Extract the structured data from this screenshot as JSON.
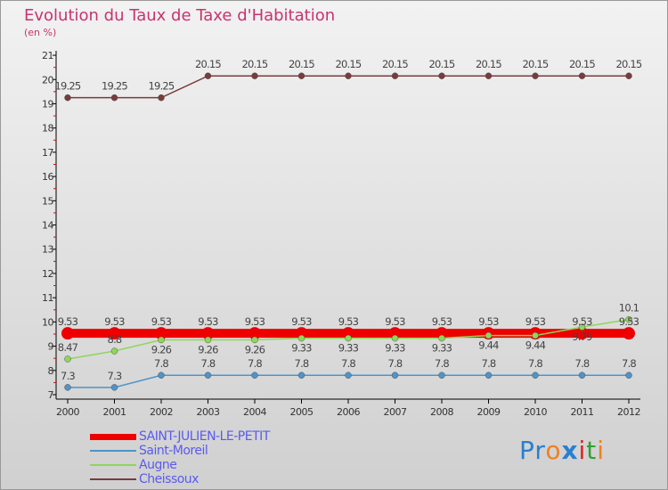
{
  "chart_data": {
    "type": "line",
    "title": "Evolution du Taux de Taxe d'Habitation",
    "subtitle": "(en %)",
    "xlabel": "",
    "ylabel": "",
    "ylim": [
      7,
      21
    ],
    "yticks": [
      "7",
      "8",
      "9",
      "10",
      "11",
      "12",
      "13",
      "14",
      "15",
      "16",
      "17",
      "18",
      "19",
      "20",
      "21"
    ],
    "x": [
      "2000",
      "2001",
      "2002",
      "2003",
      "2004",
      "2005",
      "2006",
      "2007",
      "2008",
      "2009",
      "2010",
      "2011",
      "2012"
    ],
    "legend_position": "bottom-left",
    "series": [
      {
        "name": "SAINT-JULIEN-LE-PETIT",
        "color": "#ee0000",
        "values": [
          9.53,
          9.53,
          9.53,
          9.53,
          9.53,
          9.53,
          9.53,
          9.53,
          9.53,
          9.53,
          9.53,
          9.53,
          9.53
        ],
        "labels": [
          "9.53",
          "9.53",
          "9.53",
          "9.53",
          "9.53",
          "9.53",
          "9.53",
          "9.53",
          "9.53",
          "9.53",
          "9.53",
          "9.53",
          "9.53"
        ]
      },
      {
        "name": "Saint-Moreil",
        "color": "#4f93c8",
        "values": [
          7.3,
          7.3,
          7.8,
          7.8,
          7.8,
          7.8,
          7.8,
          7.8,
          7.8,
          7.8,
          7.8,
          7.8,
          7.8
        ],
        "labels": [
          "7.3",
          "7.3",
          "7.8",
          "7.8",
          "7.8",
          "7.8",
          "7.8",
          "7.8",
          "7.8",
          "7.8",
          "7.8",
          "7.8",
          "7.8"
        ]
      },
      {
        "name": "Augne",
        "color": "#8fd65a",
        "values": [
          8.47,
          8.8,
          9.26,
          9.26,
          9.26,
          9.33,
          9.33,
          9.33,
          9.33,
          9.44,
          9.44,
          9.79,
          10.1
        ],
        "labels": [
          "8.47",
          "8.8",
          "9.26",
          "9.26",
          "9.26",
          "9.33",
          "9.33",
          "9.33",
          "9.33",
          "9.44",
          "9.44",
          "9.79",
          "10.1"
        ]
      },
      {
        "name": "Cheissoux",
        "color": "#7a3b3b",
        "values": [
          19.25,
          19.25,
          19.25,
          20.15,
          20.15,
          20.15,
          20.15,
          20.15,
          20.15,
          20.15,
          20.15,
          20.15,
          20.15
        ],
        "labels": [
          "19.25",
          "19.25",
          "19.25",
          "20.15",
          "20.15",
          "20.15",
          "20.15",
          "20.15",
          "20.15",
          "20.15",
          "20.15",
          "20.15",
          "20.15"
        ]
      }
    ]
  },
  "logo": {
    "text": "Proxiti",
    "letters": [
      "P",
      "r",
      "o",
      "x",
      "i",
      "t",
      "i"
    ],
    "colors": [
      "#2a7fd0",
      "#2a7fd0",
      "#f08020",
      "#2a7fd0",
      "#e02020",
      "#30a030",
      "#f08020"
    ]
  }
}
